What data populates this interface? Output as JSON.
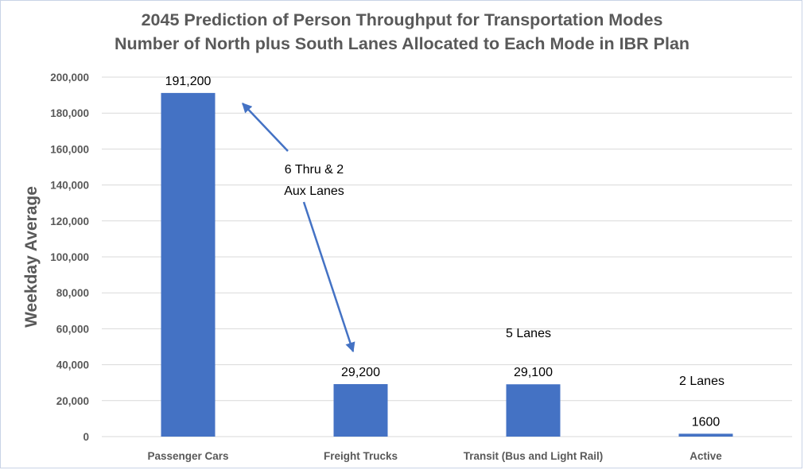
{
  "chart_data": {
    "type": "bar",
    "title_lines": [
      "2045 Prediction of Person Throughput for Transportation Modes",
      "Number of North plus South Lanes Allocated to Each Mode in IBR Plan"
    ],
    "xlabel": "",
    "ylabel": "Weekday Average",
    "ylim": [
      0,
      200000
    ],
    "yticks": [
      0,
      20000,
      40000,
      60000,
      80000,
      100000,
      120000,
      140000,
      160000,
      180000,
      200000
    ],
    "ytick_labels": [
      "0",
      "20,000",
      "40,000",
      "60,000",
      "80,000",
      "100,000",
      "120,000",
      "140,000",
      "160,000",
      "180,000",
      "200,000"
    ],
    "grid": true,
    "categories": [
      "Passenger Cars",
      "Freight Trucks",
      "Transit (Bus and Light Rail)",
      "Active"
    ],
    "values": [
      191200,
      29200,
      29100,
      1600
    ],
    "data_labels": [
      "191,200",
      "29,200",
      "29,100",
      "1600"
    ],
    "bar_color": "#4472C4",
    "annotations": [
      {
        "text_lines": [
          "6 Thru &  2",
          "Aux Lanes"
        ],
        "arrows_to": [
          "Passenger Cars",
          "Freight Trucks"
        ]
      },
      {
        "text_lines": [
          "5 Lanes"
        ],
        "category": "Transit (Bus and Light Rail)"
      },
      {
        "text_lines": [
          "2 Lanes"
        ],
        "category": "Active"
      }
    ]
  }
}
